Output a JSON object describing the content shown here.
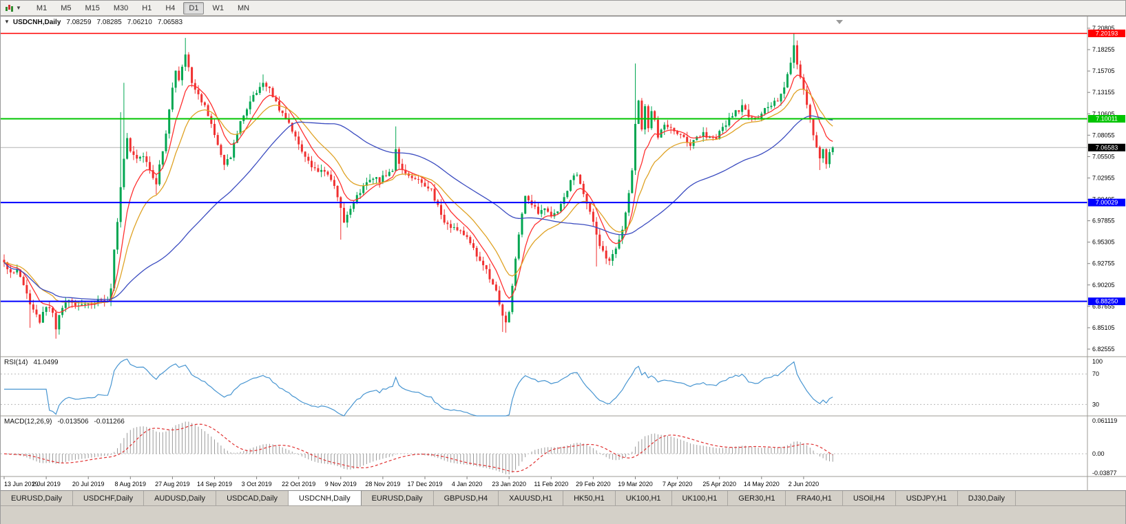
{
  "toolbar": {
    "timeframes": [
      "M1",
      "M5",
      "M15",
      "M30",
      "H1",
      "H4",
      "D1",
      "W1",
      "MN"
    ],
    "active_timeframe": "D1"
  },
  "chart_header": {
    "collapse_icon": "▼",
    "symbol": "USDCNH,Daily",
    "open": "7.08259",
    "high": "7.08285",
    "low": "7.06210",
    "close": "7.06583"
  },
  "indicators": {
    "rsi": {
      "label": "RSI(14)",
      "value": "41.0499",
      "levels": [
        100,
        70,
        30
      ],
      "axis_labels": [
        "100",
        "70",
        "30"
      ],
      "line_color": "#4795d1"
    },
    "macd": {
      "label": "MACD(12,26,9)",
      "main": "-0.013506",
      "signal": "-0.011266",
      "axis_top": "0.061119",
      "axis_zero": "0.00",
      "axis_bottom": "-0.03877",
      "histogram_color": "#9a9a9a",
      "signal_color": "#e03030"
    }
  },
  "price_axis": {
    "labels": [
      "7.20805",
      "7.18255",
      "7.15705",
      "7.13155",
      "7.10605",
      "7.08055",
      "7.05505",
      "7.02955",
      "7.00405",
      "6.97855",
      "6.95305",
      "6.92755",
      "6.90205",
      "6.87655",
      "6.85105",
      "6.82555"
    ]
  },
  "price_lines": [
    {
      "price": 7.20193,
      "label": "7.20193",
      "color": "#ff0000",
      "width": 1.5
    },
    {
      "price": 7.10011,
      "label": "7.10011",
      "color": "#00c400",
      "width": 2
    },
    {
      "price": 7.00029,
      "label": "7.00029",
      "color": "#0000ff",
      "width": 2
    },
    {
      "price": 6.8825,
      "label": "6.88250",
      "color": "#0000ff",
      "width": 2
    }
  ],
  "current_price": {
    "value": 7.06583,
    "label": "7.06583",
    "bg": "#000000",
    "line_color": "#b4b4b4"
  },
  "x_axis_dates": [
    "13 Jun 2019",
    "2 Jul 2019",
    "20 Jul 2019",
    "8 Aug 2019",
    "27 Aug 2019",
    "14 Sep 2019",
    "3 Oct 2019",
    "22 Oct 2019",
    "9 Nov 2019",
    "28 Nov 2019",
    "17 Dec 2019",
    "4 Jan 2020",
    "23 Jan 2020",
    "11 Feb 2020",
    "29 Feb 2020",
    "19 Mar 2020",
    "7 Apr 2020",
    "25 Apr 2020",
    "14 May 2020",
    "2 Jun 2020"
  ],
  "chart_data": {
    "type": "candlestick",
    "symbol": "USDCNH",
    "timeframe": "Daily",
    "candle_count": 257,
    "candles_per_date_label": 13,
    "ylim": [
      6.8165,
      7.2225
    ],
    "colors": {
      "up": "#00a651",
      "down": "#f03030"
    },
    "moving_averages": [
      {
        "name": "ma-fast",
        "type": "ema",
        "period": 8,
        "color": "#ff2f2f"
      },
      {
        "name": "ma-mid",
        "type": "ema",
        "period": 17,
        "color": "#dfa224"
      },
      {
        "name": "ma-slow",
        "type": "sma",
        "period": 55,
        "color": "#3b4cc0"
      }
    ],
    "anchors": [
      [
        0,
        6.928
      ],
      [
        2,
        6.915
      ],
      [
        4,
        6.921
      ],
      [
        6,
        6.9
      ],
      [
        9,
        6.872
      ],
      [
        11,
        6.858
      ],
      [
        13,
        6.878
      ],
      [
        15,
        6.868
      ],
      [
        16,
        6.852
      ],
      [
        18,
        6.875
      ],
      [
        20,
        6.882
      ],
      [
        23,
        6.877
      ],
      [
        26,
        6.88
      ],
      [
        29,
        6.883
      ],
      [
        32,
        6.886
      ],
      [
        33,
        6.9
      ],
      [
        34,
        6.942
      ],
      [
        35,
        6.975
      ],
      [
        36,
        7.02
      ],
      [
        37,
        7.055
      ],
      [
        38,
        7.08
      ],
      [
        39,
        7.06
      ],
      [
        41,
        7.054
      ],
      [
        43,
        7.058
      ],
      [
        45,
        7.04
      ],
      [
        47,
        7.024
      ],
      [
        48,
        7.045
      ],
      [
        50,
        7.08
      ],
      [
        51,
        7.11
      ],
      [
        52,
        7.135
      ],
      [
        53,
        7.155
      ],
      [
        54,
        7.146
      ],
      [
        55,
        7.165
      ],
      [
        56,
        7.178
      ],
      [
        57,
        7.164
      ],
      [
        58,
        7.145
      ],
      [
        60,
        7.13
      ],
      [
        62,
        7.114
      ],
      [
        64,
        7.094
      ],
      [
        65,
        7.08
      ],
      [
        67,
        7.06
      ],
      [
        68,
        7.048
      ],
      [
        70,
        7.056
      ],
      [
        72,
        7.085
      ],
      [
        74,
        7.105
      ],
      [
        76,
        7.12
      ],
      [
        78,
        7.132
      ],
      [
        80,
        7.14
      ],
      [
        82,
        7.134
      ],
      [
        84,
        7.12
      ],
      [
        86,
        7.104
      ],
      [
        88,
        7.094
      ],
      [
        90,
        7.078
      ],
      [
        91,
        7.068
      ],
      [
        93,
        7.054
      ],
      [
        95,
        7.044
      ],
      [
        97,
        7.034
      ],
      [
        99,
        7.04
      ],
      [
        101,
        7.028
      ],
      [
        103,
        7.008
      ],
      [
        104,
        6.994
      ],
      [
        105,
        6.976
      ],
      [
        106,
        6.986
      ],
      [
        108,
        7.0
      ],
      [
        110,
        7.014
      ],
      [
        112,
        7.024
      ],
      [
        114,
        7.03
      ],
      [
        116,
        7.027
      ],
      [
        118,
        7.034
      ],
      [
        120,
        7.04
      ],
      [
        121,
        7.064
      ],
      [
        122,
        7.048
      ],
      [
        124,
        7.035
      ],
      [
        126,
        7.03
      ],
      [
        128,
        7.027
      ],
      [
        130,
        7.021
      ],
      [
        132,
        7.014
      ],
      [
        134,
        6.995
      ],
      [
        136,
        6.976
      ],
      [
        138,
        6.971
      ],
      [
        140,
        6.967
      ],
      [
        142,
        6.964
      ],
      [
        143,
        6.961
      ],
      [
        145,
        6.944
      ],
      [
        147,
        6.93
      ],
      [
        149,
        6.919
      ],
      [
        151,
        6.904
      ],
      [
        153,
        6.881
      ],
      [
        154,
        6.866
      ],
      [
        155,
        6.858
      ],
      [
        156,
        6.871
      ],
      [
        157,
        6.901
      ],
      [
        158,
        6.931
      ],
      [
        159,
        6.961
      ],
      [
        160,
        6.986
      ],
      [
        161,
        7.006
      ],
      [
        163,
        6.997
      ],
      [
        165,
        6.989
      ],
      [
        167,
        6.995
      ],
      [
        169,
        6.984
      ],
      [
        171,
        6.991
      ],
      [
        173,
        7.006
      ],
      [
        175,
        7.026
      ],
      [
        177,
        7.036
      ],
      [
        179,
        7.012
      ],
      [
        181,
        6.99
      ],
      [
        183,
        6.961
      ],
      [
        185,
        6.941
      ],
      [
        187,
        6.928
      ],
      [
        189,
        6.946
      ],
      [
        191,
        6.966
      ],
      [
        192,
        6.986
      ],
      [
        193,
        7.011
      ],
      [
        194,
        7.041
      ],
      [
        195,
        7.096
      ],
      [
        196,
        7.121
      ],
      [
        197,
        7.086
      ],
      [
        198,
        7.114
      ],
      [
        199,
        7.091
      ],
      [
        200,
        7.11
      ],
      [
        201,
        7.096
      ],
      [
        202,
        7.079
      ],
      [
        203,
        7.086
      ],
      [
        204,
        7.095
      ],
      [
        206,
        7.089
      ],
      [
        208,
        7.084
      ],
      [
        210,
        7.078
      ],
      [
        212,
        7.07
      ],
      [
        214,
        7.076
      ],
      [
        216,
        7.082
      ],
      [
        218,
        7.079
      ],
      [
        220,
        7.078
      ],
      [
        222,
        7.09
      ],
      [
        224,
        7.1
      ],
      [
        226,
        7.108
      ],
      [
        228,
        7.114
      ],
      [
        230,
        7.104
      ],
      [
        232,
        7.098
      ],
      [
        234,
        7.108
      ],
      [
        236,
        7.114
      ],
      [
        238,
        7.119
      ],
      [
        240,
        7.127
      ],
      [
        241,
        7.139
      ],
      [
        242,
        7.154
      ],
      [
        243,
        7.169
      ],
      [
        244,
        7.189
      ],
      [
        245,
        7.164
      ],
      [
        246,
        7.147
      ],
      [
        247,
        7.134
      ],
      [
        248,
        7.119
      ],
      [
        249,
        7.099
      ],
      [
        250,
        7.081
      ],
      [
        251,
        7.064
      ],
      [
        252,
        7.05
      ],
      [
        253,
        7.061
      ],
      [
        254,
        7.048
      ],
      [
        255,
        7.058
      ],
      [
        256,
        7.06583
      ]
    ],
    "wicks": {
      "8": {
        "low": 6.851
      },
      "16": {
        "low": 6.838
      },
      "36": {
        "high": 7.108
      },
      "37": {
        "high": 7.143
      },
      "47": {
        "low": 7.01
      },
      "56": {
        "high": 7.1965
      },
      "68": {
        "low": 7.039
      },
      "80": {
        "high": 7.153
      },
      "104": {
        "low": 6.956
      },
      "121": {
        "high": 7.091
      },
      "154": {
        "low": 6.846
      },
      "155": {
        "low": 6.845
      },
      "183": {
        "low": 6.924
      },
      "195": {
        "high": 7.166
      },
      "244": {
        "high": 7.2019
      },
      "252": {
        "low": 7.039
      }
    }
  },
  "tabs": {
    "items": [
      "EURUSD,Daily",
      "USDCHF,Daily",
      "AUDUSD,Daily",
      "USDCAD,Daily",
      "USDCNH,Daily",
      "EURUSD,Daily",
      "GBPUSD,H4",
      "XAUUSD,H1",
      "HK50,H1",
      "UK100,H1",
      "UK100,H1",
      "GER30,H1",
      "FRA40,H1",
      "USOil,H4",
      "USDJPY,H1",
      "DJ30,Daily"
    ],
    "active_index": 4,
    "active": "USDCNH,Daily"
  }
}
